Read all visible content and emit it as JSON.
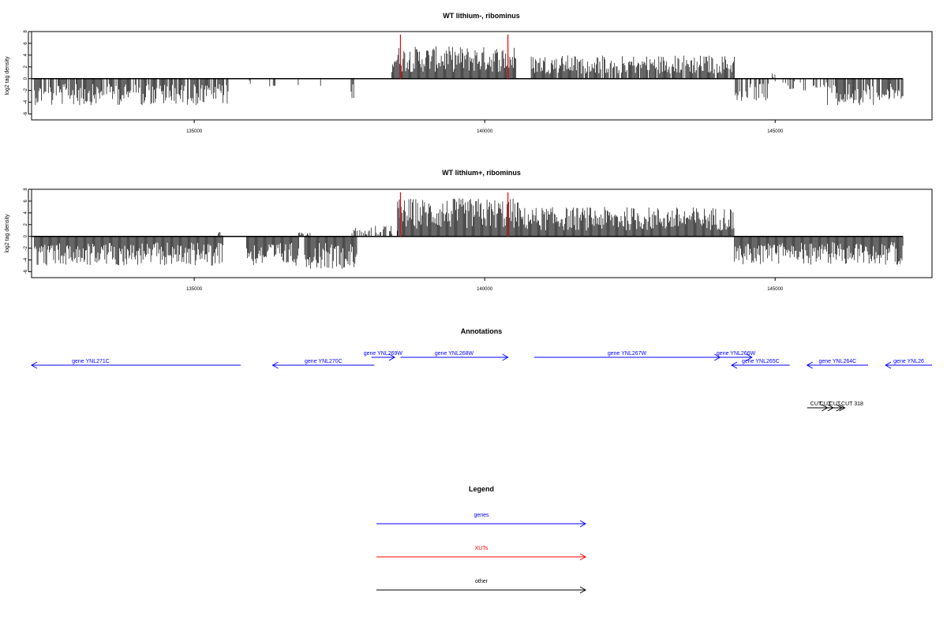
{
  "colors": {
    "genes": "#0000ff",
    "xuts": "#ff0000",
    "other": "#000000",
    "frame": "#000000"
  },
  "chart_data": [
    {
      "type": "bar",
      "id": "panel-lithium-minus",
      "title": "WT lithium-, ribominus",
      "ylabel": "log2 tag density",
      "xlim": [
        132200,
        147700
      ],
      "ylim": [
        -7,
        8
      ],
      "xticks": [
        135000,
        140000,
        145000
      ],
      "yticks": [
        8,
        6,
        4,
        2,
        0,
        -2,
        -4,
        -6
      ],
      "baseline": [
        132200,
        147200
      ],
      "markers": [
        138550,
        140400
      ],
      "segments": [
        {
          "start": 132250,
          "end": 135600,
          "amp": -4.5,
          "density": 0.8
        },
        {
          "start": 135950,
          "end": 136050,
          "amp": -1.2,
          "density": 0.4
        },
        {
          "start": 136300,
          "end": 136400,
          "amp": -2.0,
          "density": 0.4
        },
        {
          "start": 136700,
          "end": 136800,
          "amp": -2.0,
          "density": 0.4
        },
        {
          "start": 137100,
          "end": 137200,
          "amp": -1.8,
          "density": 0.4
        },
        {
          "start": 137700,
          "end": 137750,
          "amp": -3.8,
          "density": 0.5
        },
        {
          "start": 138400,
          "end": 140550,
          "amp": 5.5,
          "density": 1.0
        },
        {
          "start": 140800,
          "end": 144300,
          "amp": 4.0,
          "density": 0.9
        },
        {
          "start": 144300,
          "end": 144900,
          "amp": -4.0,
          "density": 0.6
        },
        {
          "start": 144950,
          "end": 145000,
          "amp": 1.2,
          "density": 0.5
        },
        {
          "start": 145000,
          "end": 145900,
          "amp": -2.0,
          "density": 0.3
        },
        {
          "start": 145900,
          "end": 146700,
          "amp": -4.5,
          "density": 0.8
        },
        {
          "start": 146750,
          "end": 147200,
          "amp": -4.2,
          "density": 0.9
        }
      ]
    },
    {
      "type": "bar",
      "id": "panel-lithium-plus",
      "title": "WT lithium+, ribominus",
      "ylabel": "log2 tag density",
      "xlim": [
        132200,
        147700
      ],
      "ylim": [
        -7,
        8
      ],
      "xticks": [
        135000,
        140000,
        145000
      ],
      "yticks": [
        8,
        6,
        4,
        2,
        0,
        -2,
        -4,
        -6
      ],
      "baseline": [
        132200,
        147200
      ],
      "markers": [
        138550,
        140400
      ],
      "segments": [
        {
          "start": 132250,
          "end": 135500,
          "amp": -5.0,
          "density": 1.0
        },
        {
          "start": 135400,
          "end": 135500,
          "amp": 0.8,
          "density": 0.4
        },
        {
          "start": 135900,
          "end": 136800,
          "amp": -5.0,
          "density": 1.0
        },
        {
          "start": 136800,
          "end": 137000,
          "amp": 0.8,
          "density": 0.4
        },
        {
          "start": 136900,
          "end": 137800,
          "amp": -5.5,
          "density": 1.0
        },
        {
          "start": 137700,
          "end": 138000,
          "amp": 1.5,
          "density": 0.5
        },
        {
          "start": 138000,
          "end": 138500,
          "amp": 1.8,
          "density": 0.5
        },
        {
          "start": 138500,
          "end": 140600,
          "amp": 6.5,
          "density": 1.0
        },
        {
          "start": 140600,
          "end": 144300,
          "amp": 5.0,
          "density": 1.0
        },
        {
          "start": 144300,
          "end": 147200,
          "amp": -4.8,
          "density": 1.0
        }
      ]
    }
  ],
  "panels_text": {
    "panel1_title": "WT lithium-, ribominus",
    "panel2_title": "WT lithium+, ribominus",
    "ylabel": "log2 tag density",
    "xtick_1": "135000",
    "xtick_2": "140000",
    "xtick_3": "145000",
    "ytick_8": "8",
    "ytick_6": "6",
    "ytick_4": "4",
    "ytick_2": "2",
    "ytick_0": "0",
    "ytick_m2": "-2",
    "ytick_m4": "-4",
    "ytick_m6": "-6"
  },
  "annotations": {
    "title": "Annotations",
    "genes": [
      {
        "label": "gene YNL271C",
        "start": 132200,
        "end": 135800,
        "strand": "-",
        "row": 2
      },
      {
        "label": "gene YNL270C",
        "start": 136350,
        "end": 138100,
        "strand": "-",
        "row": 2
      },
      {
        "label": "gene YNL269W",
        "start": 138050,
        "end": 138450,
        "strand": "+",
        "row": 1
      },
      {
        "label": "gene YNL268W",
        "start": 138550,
        "end": 140400,
        "strand": "+",
        "row": 1
      },
      {
        "label": "gene YNL267W",
        "start": 140850,
        "end": 144050,
        "strand": "+",
        "row": 1
      },
      {
        "label": "gene YNL266W",
        "start": 144050,
        "end": 144600,
        "strand": "+",
        "row": 1
      },
      {
        "label": "gene YNL265C",
        "start": 144250,
        "end": 145250,
        "strand": "-",
        "row": 2
      },
      {
        "label": "gene YNL264C",
        "start": 145550,
        "end": 146600,
        "strand": "-",
        "row": 2
      },
      {
        "label": "gene YNL26",
        "start": 146900,
        "end": 147700,
        "strand": "-",
        "row": 2
      }
    ],
    "cuts": [
      {
        "label": "CUT",
        "start": 145550,
        "end": 145900
      },
      {
        "label": "CUT",
        "start": 145700,
        "end": 146000
      },
      {
        "label": "CUT",
        "start": 145850,
        "end": 146150
      },
      {
        "label": "CUT 318",
        "start": 145950,
        "end": 146200
      }
    ]
  },
  "legend": {
    "title": "Legend",
    "items": [
      {
        "label": "genes",
        "color": "#0000ff"
      },
      {
        "label": "XUTs",
        "color": "#ff0000"
      },
      {
        "label": "other",
        "color": "#000000"
      }
    ]
  }
}
